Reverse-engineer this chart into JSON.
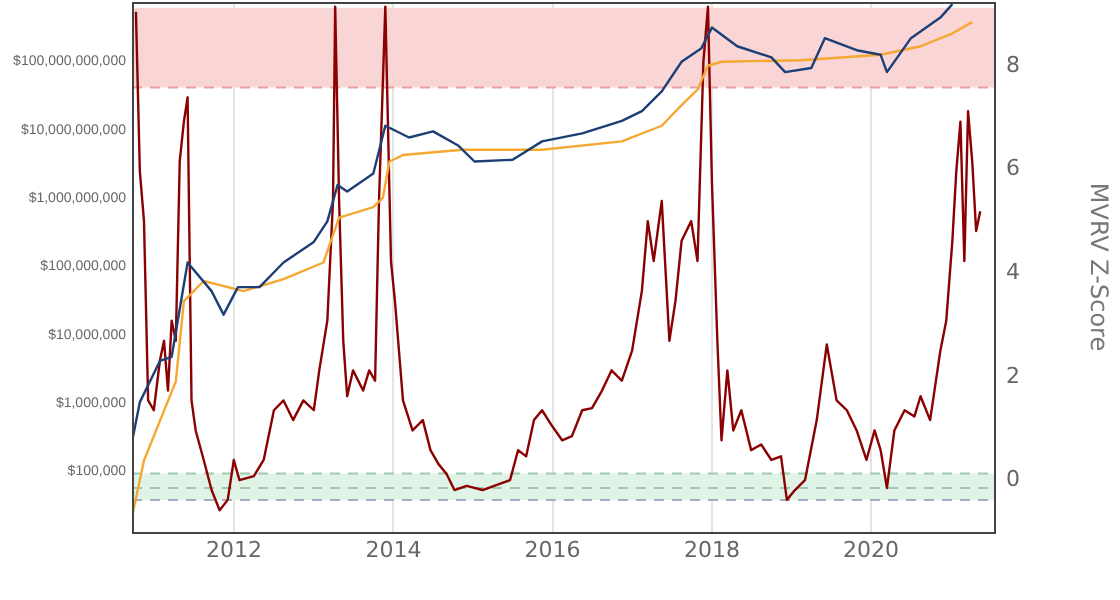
{
  "chart_data": {
    "type": "line",
    "y2label": "MVRV Z-Score",
    "log": "y",
    "grid": "x",
    "marker": "none",
    "line_style": "solid",
    "xlim": [
      "2010-09-20",
      "2021-07-18"
    ],
    "xticks": [
      "2012",
      "2014",
      "2016",
      "2018",
      "2020"
    ],
    "ylim": [
      12600,
      710000000000
    ],
    "yticks": [
      {
        "value": 100000,
        "label": "$100,000"
      },
      {
        "value": 1000000,
        "label": "$1,000,000"
      },
      {
        "value": 10000000,
        "label": "$10,000,000"
      },
      {
        "value": 100000000,
        "label": "$100,000,000"
      },
      {
        "value": 1000000000,
        "label": "$1,000,000,000"
      },
      {
        "value": 10000000000,
        "label": "$10,000,000,000"
      },
      {
        "value": 100000000000,
        "label": "$100,000,000,000"
      }
    ],
    "y2lim": [
      -1.04,
      9.19
    ],
    "y2ticks": [
      0,
      2,
      4,
      6,
      8
    ],
    "series": [
      {
        "color": "#1c3f77",
        "x": [
          "2010-09-20",
          "2010-10-26",
          "2011-01-26",
          "2011-03-21",
          "2011-06-02",
          "2011-09-20",
          "2011-11-14",
          "2012-01-19",
          "2012-04-27",
          "2012-08-15",
          "2013-01-01",
          "2013-03-04",
          "2013-04-20",
          "2013-06-03",
          "2013-10-01",
          "2013-11-25",
          "2014-03-14",
          "2014-07-02",
          "2014-10-27",
          "2015-01-08",
          "2015-07-02",
          "2015-11-14",
          "2016-05-16",
          "2016-11-14",
          "2017-02-14",
          "2017-05-16",
          "2017-08-15",
          "2017-11-14",
          "2018-01-01",
          "2018-04-27",
          "2018-10-01",
          "2018-12-03",
          "2019-04-02",
          "2019-06-03",
          "2019-10-27",
          "2020-02-14",
          "2020-03-14",
          "2020-07-02",
          "2020-11-14",
          "2021-01-08"
        ],
        "values": [
          260000,
          1000000,
          4000000,
          4600000,
          110000000,
          42000000,
          19000000,
          48000000,
          48000000,
          110000000,
          220000000,
          440000000,
          1500000000,
          1200000000,
          2200000000,
          11000000000,
          7400000000,
          9100000000,
          5600000000,
          3300000000,
          3500000000,
          6500000000,
          8500000000,
          13000000000,
          18000000000,
          35000000000,
          95000000000,
          150000000000,
          300000000000,
          160000000000,
          110000000000,
          67000000000,
          77000000000,
          210000000000,
          140000000000,
          120000000000,
          67000000000,
          210000000000,
          420000000000,
          660000000000
        ]
      },
      {
        "color": "#f5a830",
        "x": [
          "2010-09-20",
          "2010-11-14",
          "2011-02-14",
          "2011-04-09",
          "2011-05-16",
          "2011-08-15",
          "2012-02-14",
          "2012-08-15",
          "2013-02-14",
          "2013-04-27",
          "2013-10-01",
          "2013-11-14",
          "2013-12-14",
          "2014-02-14",
          "2014-11-14",
          "2015-11-14",
          "2016-11-14",
          "2017-05-16",
          "2017-08-15",
          "2017-10-27",
          "2017-12-14",
          "2018-02-14",
          "2019-02-14",
          "2020-02-14",
          "2020-08-15",
          "2021-01-01",
          "2021-04-09"
        ],
        "values": [
          21000,
          140000,
          750000,
          2000000,
          30000000,
          59000000,
          42000000,
          63000000,
          110000000,
          500000000,
          710000000,
          980000000,
          3300000000,
          4100000000,
          4900000000,
          4900000000,
          6500000000,
          11000000000,
          22000000000,
          37000000000,
          83000000000,
          95000000000,
          100000000000,
          120000000000,
          160000000000,
          240000000000,
          360000000000
        ]
      },
      {
        "color": "#8b0000",
        "axis": "y2",
        "x": [
          "2010-10-08",
          "2010-10-26",
          "2010-11-14",
          "2010-12-03",
          "2010-12-29",
          "2011-01-26",
          "2011-02-14",
          "2011-03-04",
          "2011-03-21",
          "2011-04-09",
          "2011-04-27",
          "2011-05-16",
          "2011-06-02",
          "2011-06-20",
          "2011-07-09",
          "2011-08-15",
          "2011-09-20",
          "2011-10-27",
          "2011-12-03",
          "2011-12-31",
          "2012-01-26",
          "2012-04-01",
          "2012-05-16",
          "2012-07-02",
          "2012-08-15",
          "2012-09-28",
          "2012-11-14",
          "2013-01-01",
          "2013-01-26",
          "2013-03-04",
          "2013-03-30",
          "2013-04-09",
          "2013-04-27",
          "2013-05-16",
          "2013-06-03",
          "2013-06-30",
          "2013-08-15",
          "2013-09-12",
          "2013-10-09",
          "2013-10-27",
          "2013-11-25",
          "2013-12-21",
          "2014-01-08",
          "2014-02-14",
          "2014-03-30",
          "2014-05-16",
          "2014-06-20",
          "2014-07-27",
          "2014-09-02",
          "2014-10-08",
          "2014-12-03",
          "2015-02-14",
          "2015-04-27",
          "2015-06-20",
          "2015-07-27",
          "2015-09-02",
          "2015-10-08",
          "2015-11-14",
          "2015-12-31",
          "2016-02-14",
          "2016-03-30",
          "2016-05-16",
          "2016-06-30",
          "2016-08-15",
          "2016-09-28",
          "2016-11-14",
          "2016-12-31",
          "2017-02-14",
          "2017-03-13",
          "2017-04-09",
          "2017-05-16",
          "2017-06-20",
          "2017-07-18",
          "2017-08-15",
          "2017-09-28",
          "2017-10-27",
          "2017-11-23",
          "2017-12-14",
          "2018-01-01",
          "2018-01-26",
          "2018-02-14",
          "2018-03-13",
          "2018-04-09",
          "2018-05-16",
          "2018-06-30",
          "2018-08-15",
          "2018-10-01",
          "2018-11-14",
          "2018-12-11",
          "2019-01-17",
          "2019-03-04",
          "2019-04-27",
          "2019-06-12",
          "2019-07-27",
          "2019-09-12",
          "2019-10-27",
          "2019-12-11",
          "2020-01-17",
          "2020-02-14",
          "2020-03-14",
          "2020-04-17",
          "2020-06-03",
          "2020-07-18",
          "2020-08-15",
          "2020-09-28",
          "2020-11-14",
          "2020-12-11",
          "2021-01-08",
          "2021-01-26",
          "2021-02-14",
          "2021-03-04",
          "2021-03-21",
          "2021-04-09",
          "2021-04-27",
          "2021-05-16"
        ],
        "values": [
          9.0,
          5.92,
          4.96,
          1.5,
          1.31,
          2.27,
          2.65,
          1.69,
          3.04,
          2.65,
          6.12,
          6.88,
          7.35,
          1.5,
          0.92,
          0.35,
          -0.23,
          -0.62,
          -0.42,
          0.35,
          -0.04,
          0.04,
          0.35,
          1.31,
          1.5,
          1.12,
          1.5,
          1.31,
          2.08,
          3.04,
          5.35,
          9.1,
          5.35,
          2.65,
          1.58,
          2.08,
          1.69,
          2.08,
          1.88,
          5.35,
          9.1,
          4.19,
          3.42,
          1.5,
          0.92,
          1.12,
          0.54,
          0.27,
          0.08,
          -0.23,
          -0.15,
          -0.23,
          -0.12,
          -0.04,
          0.54,
          0.42,
          1.12,
          1.31,
          1.0,
          0.73,
          0.81,
          1.31,
          1.35,
          1.69,
          2.08,
          1.88,
          2.46,
          3.62,
          4.96,
          4.19,
          5.35,
          2.65,
          3.42,
          4.58,
          4.96,
          4.19,
          8.04,
          9.1,
          5.73,
          2.65,
          0.73,
          2.08,
          0.92,
          1.31,
          0.54,
          0.65,
          0.35,
          0.42,
          -0.42,
          -0.23,
          -0.04,
          1.12,
          2.58,
          1.5,
          1.31,
          0.92,
          0.35,
          0.92,
          0.54,
          -0.19,
          0.92,
          1.31,
          1.19,
          1.58,
          1.12,
          2.46,
          3.04,
          4.58,
          5.92,
          6.88,
          4.19,
          7.08,
          6.12,
          4.77,
          5.15
        ]
      }
    ],
    "bands": [
      {
        "axis": "y2",
        "from": 7.54,
        "to": 9.08,
        "color": "#f9d5d5"
      },
      {
        "axis": "y2",
        "from": -0.42,
        "to": 0.09,
        "color": "#dff4e6"
      }
    ],
    "ref_lines": [
      {
        "axis": "y2",
        "value": 7.54,
        "color": "#e8a0a0",
        "line_style": "dashed"
      },
      {
        "axis": "y2",
        "value": 0.09,
        "color": "#9fc8b0",
        "line_style": "dashed"
      },
      {
        "axis": "y2",
        "value": -0.19,
        "color": "#9fc8b0",
        "line_style": "dashed"
      },
      {
        "axis": "y2",
        "value": -0.42,
        "color": "#9fb0c0",
        "line_style": "dashed"
      }
    ]
  }
}
